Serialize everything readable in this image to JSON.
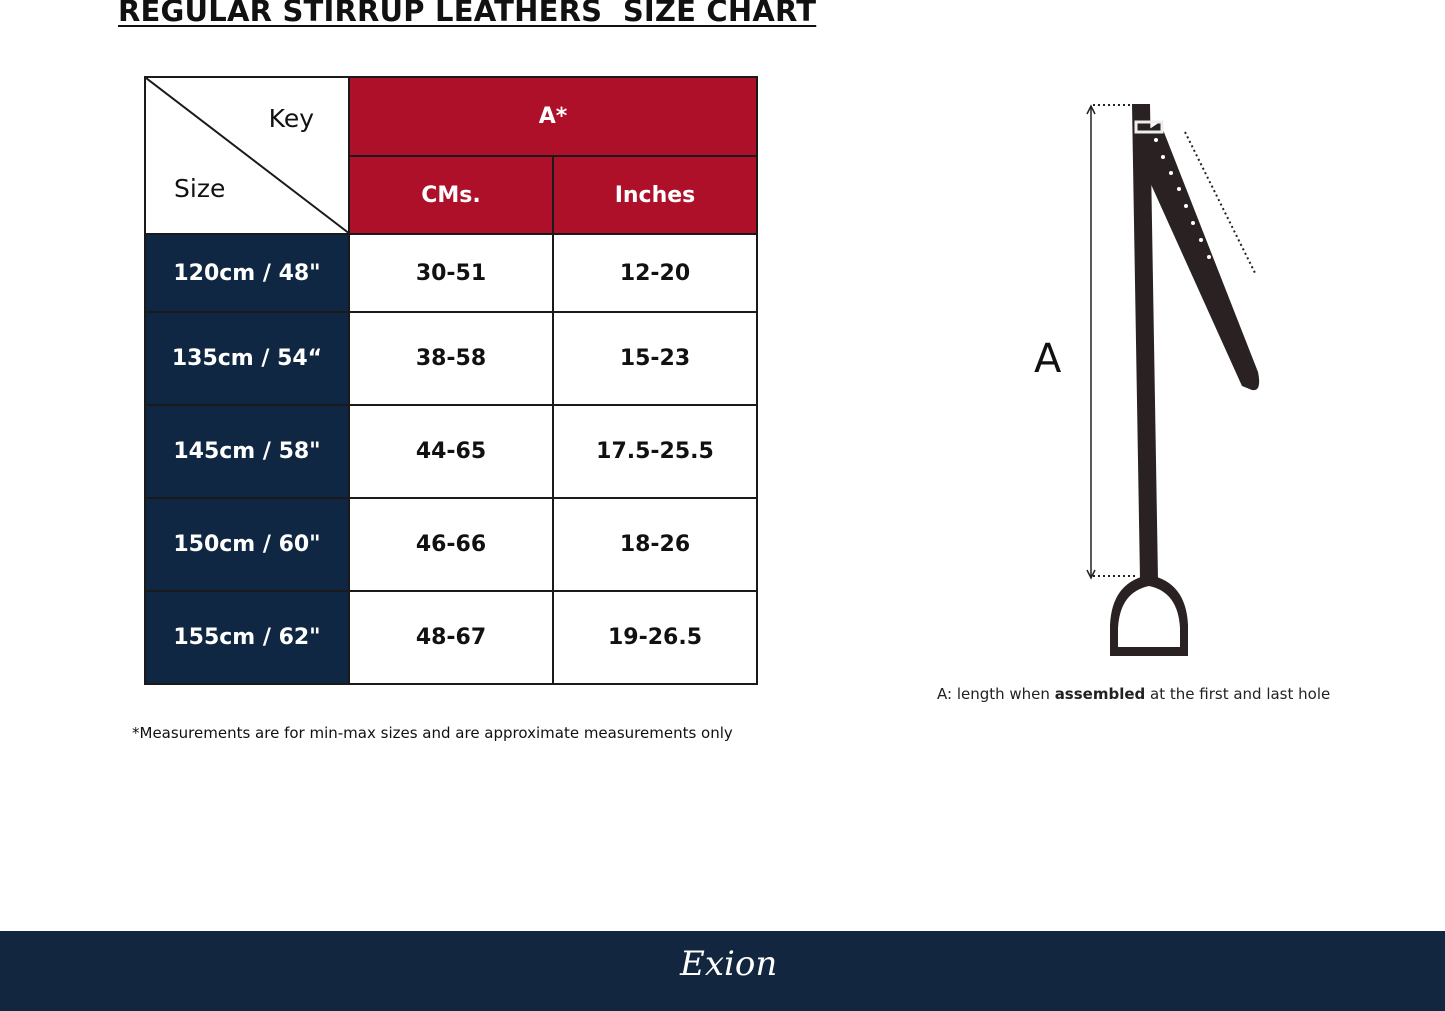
{
  "title": "REGULAR STIRRUP LEATHERS  SIZE CHART",
  "table": {
    "key_label": "Key",
    "size_label": "Size",
    "group_header": "A*",
    "columns": [
      "CMs.",
      "Inches"
    ],
    "rows": [
      {
        "size": "120cm / 48\"",
        "cms": "30-51",
        "inches": "12-20"
      },
      {
        "size": "135cm / 54“",
        "cms": "38-58",
        "inches": "15-23"
      },
      {
        "size": "145cm / 58\"",
        "cms": "44-65",
        "inches": "17.5-25.5"
      },
      {
        "size": "150cm / 60\"",
        "cms": "46-66",
        "inches": "18-26"
      },
      {
        "size": "155cm / 62\"",
        "cms": "48-67",
        "inches": "19-26.5"
      }
    ]
  },
  "footnote": "*Measurements are for min-max sizes and are approximate measurements only",
  "diagram": {
    "label": "A",
    "caption_prefix": "A: length when ",
    "caption_bold": "assembled",
    "caption_suffix": " at the first and last hole"
  },
  "footer": {
    "brand": "Exion"
  },
  "colors": {
    "header_red": "#ad1028",
    "navy": "#0f2742"
  }
}
